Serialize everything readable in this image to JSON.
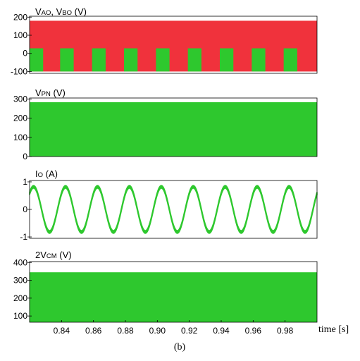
{
  "colors": {
    "green": "#2ec82e",
    "red": "#f0323c",
    "axis": "#000000"
  },
  "x_axis": {
    "range": [
      0.82,
      1.0
    ],
    "ticks": [
      0.84,
      0.86,
      0.88,
      0.9,
      0.92,
      0.94,
      0.96,
      0.98
    ],
    "tick_labels": [
      "0.84",
      "0.86",
      "0.88",
      "0.90",
      "0.92",
      "0.94",
      "0.96",
      "0.98"
    ],
    "label": "time [s]"
  },
  "caption": "(b)",
  "chart_data": [
    {
      "type": "area",
      "title_parts": [
        "V",
        "AO",
        ", V",
        "BO",
        " (V)"
      ],
      "ylim": [
        -110,
        205
      ],
      "yticks": [
        200,
        100,
        0,
        -100
      ],
      "ytick_labels": [
        "200",
        "100",
        "0",
        "-100"
      ],
      "series": [
        {
          "color_key": "red",
          "kind": "band",
          "min": -100,
          "max": 180
        },
        {
          "color_key": "green",
          "kind": "pulses",
          "min": -100,
          "max": 28,
          "base": -100,
          "period": 0.02,
          "pulse_width": 0.0085,
          "phase": 0.82
        }
      ]
    },
    {
      "type": "area",
      "title_parts": [
        "V",
        "PN",
        " (V)"
      ],
      "ylim": [
        0,
        305
      ],
      "yticks": [
        300,
        200,
        100,
        0
      ],
      "ytick_labels": [
        "300",
        "200",
        "100",
        "0"
      ],
      "series": [
        {
          "color_key": "green",
          "kind": "band",
          "min": 0,
          "max": 283
        }
      ]
    },
    {
      "type": "line",
      "title_parts": [
        "I",
        "O",
        " (A)"
      ],
      "ylim": [
        -1.05,
        1.05
      ],
      "yticks": [
        1,
        0,
        -1
      ],
      "ytick_labels": [
        "1",
        "0",
        "-1"
      ],
      "series": [
        {
          "color_key": "green",
          "kind": "sine",
          "amplitude": 0.82,
          "frequency": 50,
          "phase_time": 0.8225,
          "ripple": 0.1
        }
      ]
    },
    {
      "type": "area",
      "title_parts": [
        "2V",
        "CM",
        " (V)"
      ],
      "ylim": [
        65,
        405
      ],
      "yticks": [
        400,
        300,
        200,
        100
      ],
      "ytick_labels": [
        "400",
        "300",
        "200",
        "100"
      ],
      "series": [
        {
          "color_key": "green",
          "kind": "band",
          "min": 65,
          "max": 345
        }
      ]
    }
  ]
}
